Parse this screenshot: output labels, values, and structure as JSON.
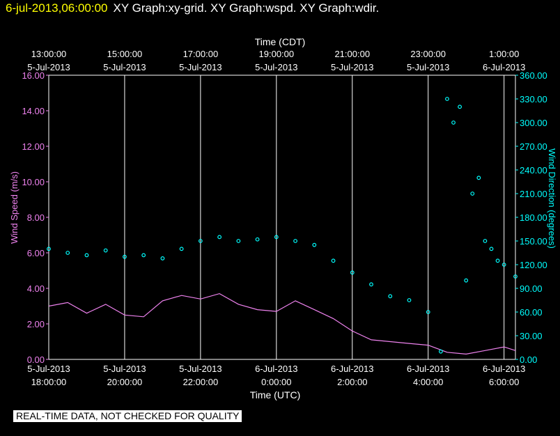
{
  "header": {
    "timestamp": "6-jul-2013,06:00:00",
    "titles": "XY Graph:xy-grid.  XY Graph:wspd.  XY Graph:wdir."
  },
  "disclaimer": "REAL-TIME DATA, NOT CHECKED FOR QUALITY",
  "colors": {
    "background": "#000000",
    "axis": "#ffffff",
    "speed": "#ee82ee",
    "direction": "#00ffff",
    "header_time": "#ffff00"
  },
  "chart_data": {
    "type": "line",
    "top_axis": {
      "title": "Time (CDT)",
      "ticks": [
        {
          "time": "13:00:00",
          "date": "5-Jul-2013"
        },
        {
          "time": "15:00:00",
          "date": "5-Jul-2013"
        },
        {
          "time": "17:00:00",
          "date": "5-Jul-2013"
        },
        {
          "time": "19:00:00",
          "date": "5-Jul-2013"
        },
        {
          "time": "21:00:00",
          "date": "5-Jul-2013"
        },
        {
          "time": "23:00:00",
          "date": "5-Jul-2013"
        },
        {
          "time": "1:00:00",
          "date": "6-Jul-2013"
        }
      ]
    },
    "bottom_axis": {
      "title": "Time (UTC)",
      "range": [
        "2013-07-05 18:00",
        "2013-07-06 06:18"
      ],
      "ticks": [
        {
          "date": "5-Jul-2013",
          "time": "18:00:00"
        },
        {
          "date": "5-Jul-2013",
          "time": "20:00:00"
        },
        {
          "date": "5-Jul-2013",
          "time": "22:00:00"
        },
        {
          "date": "6-Jul-2013",
          "time": "0:00:00"
        },
        {
          "date": "6-Jul-2013",
          "time": "2:00:00"
        },
        {
          "date": "6-Jul-2013",
          "time": "4:00:00"
        },
        {
          "date": "6-Jul-2013",
          "time": "6:00:00"
        }
      ]
    },
    "left_axis": {
      "title": "Wind Speed (m/s)",
      "range": [
        0,
        16
      ],
      "ticks": [
        "0.00",
        "2.00",
        "4.00",
        "6.00",
        "8.00",
        "10.00",
        "12.00",
        "14.00",
        "16.00"
      ]
    },
    "right_axis": {
      "title": "Wind Direction (degrees)",
      "range": [
        0,
        360
      ],
      "ticks": [
        "0.00",
        "30.00",
        "60.00",
        "90.00",
        "120.00",
        "150.00",
        "180.00",
        "210.00",
        "240.00",
        "270.00",
        "300.00",
        "330.00",
        "360.00"
      ]
    },
    "vertical_grid": true,
    "series": [
      {
        "name": "Wind Speed (m/s)",
        "style": "line",
        "x": [
          "2013-07-05 18:00",
          "2013-07-05 18:30",
          "2013-07-05 19:00",
          "2013-07-05 19:30",
          "2013-07-05 20:00",
          "2013-07-05 20:30",
          "2013-07-05 21:00",
          "2013-07-05 21:30",
          "2013-07-05 22:00",
          "2013-07-05 22:30",
          "2013-07-05 23:00",
          "2013-07-05 23:30",
          "2013-07-06 00:00",
          "2013-07-06 00:30",
          "2013-07-06 01:00",
          "2013-07-06 01:30",
          "2013-07-06 02:00",
          "2013-07-06 02:30",
          "2013-07-06 03:00",
          "2013-07-06 03:30",
          "2013-07-06 04:00",
          "2013-07-06 04:30",
          "2013-07-06 05:00",
          "2013-07-06 05:30",
          "2013-07-06 06:00",
          "2013-07-06 06:18"
        ],
        "values": [
          3.0,
          3.2,
          2.6,
          3.1,
          2.5,
          2.4,
          3.3,
          3.6,
          3.4,
          3.7,
          3.1,
          2.8,
          2.7,
          3.3,
          2.8,
          2.3,
          1.6,
          1.1,
          1.0,
          0.9,
          0.8,
          0.4,
          0.3,
          0.5,
          0.7,
          0.5
        ]
      },
      {
        "name": "Wind Direction (degrees)",
        "style": "scatter",
        "x": [
          "2013-07-05 18:00",
          "2013-07-05 18:30",
          "2013-07-05 19:00",
          "2013-07-05 19:30",
          "2013-07-05 20:00",
          "2013-07-05 20:30",
          "2013-07-05 21:00",
          "2013-07-05 21:30",
          "2013-07-05 22:00",
          "2013-07-05 22:30",
          "2013-07-05 23:00",
          "2013-07-05 23:30",
          "2013-07-06 00:00",
          "2013-07-06 00:30",
          "2013-07-06 01:00",
          "2013-07-06 01:30",
          "2013-07-06 02:00",
          "2013-07-06 02:30",
          "2013-07-06 03:00",
          "2013-07-06 03:30",
          "2013-07-06 04:00",
          "2013-07-06 04:20",
          "2013-07-06 04:30",
          "2013-07-06 04:40",
          "2013-07-06 04:50",
          "2013-07-06 05:00",
          "2013-07-06 05:10",
          "2013-07-06 05:20",
          "2013-07-06 05:30",
          "2013-07-06 05:40",
          "2013-07-06 05:50",
          "2013-07-06 06:00",
          "2013-07-06 06:18"
        ],
        "values": [
          140,
          135,
          132,
          138,
          130,
          132,
          128,
          140,
          150,
          155,
          150,
          152,
          155,
          150,
          145,
          125,
          110,
          95,
          80,
          75,
          60,
          10,
          330,
          300,
          320,
          100,
          210,
          230,
          150,
          140,
          125,
          120,
          105
        ]
      }
    ]
  }
}
